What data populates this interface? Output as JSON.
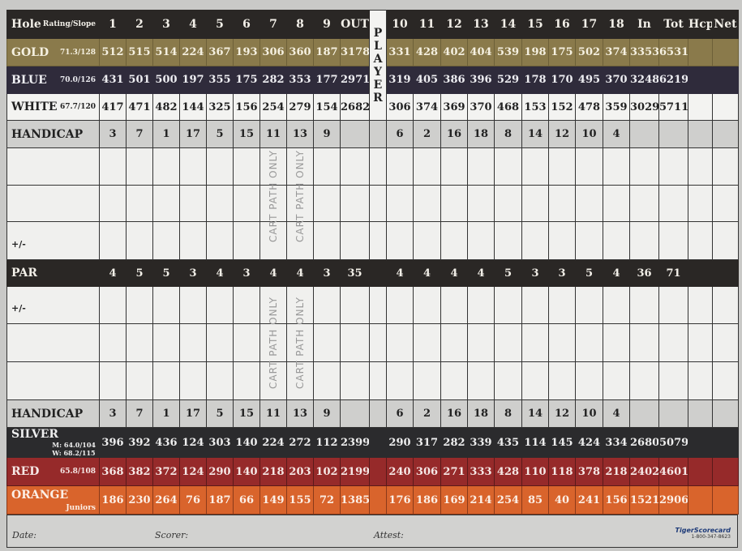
{
  "header": {
    "hole": "Hole",
    "rating_slope": "Rating/Slope",
    "front_holes": [
      "1",
      "2",
      "3",
      "4",
      "5",
      "6",
      "7",
      "8",
      "9"
    ],
    "out": "OUT",
    "back_holes": [
      "10",
      "11",
      "12",
      "13",
      "14",
      "15",
      "16",
      "17",
      "18"
    ],
    "in": "In",
    "tot": "Tot",
    "hcp": "Hcp",
    "net": "Net"
  },
  "player_label": [
    "P",
    "L",
    "A",
    "Y",
    "E",
    "R"
  ],
  "tees_top": [
    {
      "key": "gold",
      "name": "GOLD",
      "rating": "71.3/128",
      "front": [
        "512",
        "515",
        "514",
        "224",
        "367",
        "193",
        "306",
        "360",
        "187"
      ],
      "out": "3178",
      "back": [
        "331",
        "428",
        "402",
        "404",
        "539",
        "198",
        "175",
        "502",
        "374"
      ],
      "in": "3353",
      "tot": "6531",
      "color": "#8a7a4b"
    },
    {
      "key": "blue",
      "name": "BLUE",
      "rating": "70.0/126",
      "front": [
        "431",
        "501",
        "500",
        "197",
        "355",
        "175",
        "282",
        "353",
        "177"
      ],
      "out": "2971",
      "back": [
        "319",
        "405",
        "386",
        "396",
        "529",
        "178",
        "170",
        "495",
        "370"
      ],
      "in": "3248",
      "tot": "6219",
      "color": "#2f2b3b"
    },
    {
      "key": "white",
      "name": "WHITE",
      "rating": "67.7/120",
      "front": [
        "417",
        "471",
        "482",
        "144",
        "325",
        "156",
        "254",
        "279",
        "154"
      ],
      "out": "2682",
      "back": [
        "306",
        "374",
        "369",
        "370",
        "468",
        "153",
        "152",
        "478",
        "359"
      ],
      "in": "3029",
      "tot": "5711",
      "color": "#f3f3f1"
    }
  ],
  "handicap": {
    "label": "HANDICAP",
    "front": [
      "3",
      "7",
      "1",
      "17",
      "5",
      "15",
      "11",
      "13",
      "9"
    ],
    "back": [
      "6",
      "2",
      "16",
      "18",
      "8",
      "14",
      "12",
      "10",
      "4"
    ]
  },
  "par": {
    "label": "PAR",
    "front": [
      "4",
      "5",
      "5",
      "3",
      "4",
      "3",
      "4",
      "4",
      "3"
    ],
    "out": "35",
    "back": [
      "4",
      "4",
      "4",
      "4",
      "5",
      "3",
      "3",
      "5",
      "4"
    ],
    "in": "36",
    "tot": "71"
  },
  "plus_minus": "+/-",
  "cart_path": "CART PATH ONLY",
  "tees_bottom": [
    {
      "key": "silver",
      "name": "SILVER",
      "rating": "M: 64.0/104\nW: 68.2/115",
      "front": [
        "396",
        "392",
        "436",
        "124",
        "303",
        "140",
        "224",
        "272",
        "112"
      ],
      "out": "2399",
      "back": [
        "290",
        "317",
        "282",
        "339",
        "435",
        "114",
        "145",
        "424",
        "334"
      ],
      "in": "2680",
      "tot": "5079",
      "color": "#2b2b2d"
    },
    {
      "key": "red",
      "name": "RED",
      "rating": "65.8/108",
      "front": [
        "368",
        "382",
        "372",
        "124",
        "290",
        "140",
        "218",
        "203",
        "102"
      ],
      "out": "2199",
      "back": [
        "240",
        "306",
        "271",
        "333",
        "428",
        "110",
        "118",
        "378",
        "218"
      ],
      "in": "2402",
      "tot": "4601",
      "color": "#962a2a"
    },
    {
      "key": "orange",
      "name": "ORANGE",
      "rating": "Juniors",
      "front": [
        "186",
        "230",
        "264",
        "76",
        "187",
        "66",
        "149",
        "155",
        "72"
      ],
      "out": "1385",
      "back": [
        "176",
        "186",
        "169",
        "214",
        "254",
        "85",
        "40",
        "241",
        "156"
      ],
      "in": "1521",
      "tot": "2906",
      "color": "#d9642c"
    }
  ],
  "footer": {
    "date": "Date:",
    "scorer": "Scorer:",
    "attest": "Attest:",
    "brand": "TigerScorecard",
    "phone": "1-800-347-8623"
  }
}
